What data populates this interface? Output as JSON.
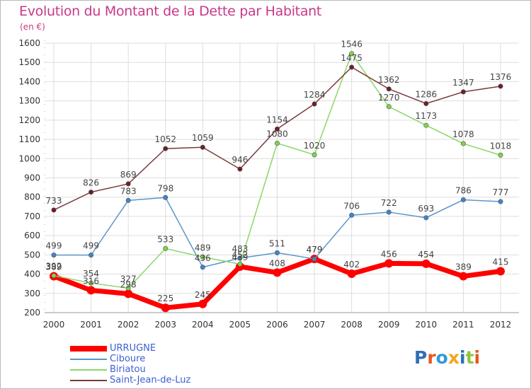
{
  "title": "Evolution du Montant de la Dette par Habitant",
  "unit_label": "(en €)",
  "logo_text": "Proxiti",
  "colors": {
    "title": "#c8388a",
    "axis_text": "#333333",
    "grid": "#dddddd",
    "legend_text": "#3c5fd6"
  },
  "chart_data": {
    "type": "line",
    "title": "Evolution du Montant de la Dette par Habitant",
    "xlabel": "",
    "ylabel": "(en €)",
    "ylim": [
      200,
      1600
    ],
    "yticks": [
      200,
      300,
      400,
      500,
      600,
      700,
      800,
      900,
      1000,
      1100,
      1200,
      1300,
      1400,
      1500,
      1600
    ],
    "categories": [
      "2000",
      "2001",
      "2002",
      "2003",
      "2004",
      "2005",
      "2006",
      "2007",
      "2008",
      "2009",
      "2010",
      "2011",
      "2012"
    ],
    "grid": true,
    "legend_position": "bottom-left",
    "series": [
      {
        "name": "URRUGNE",
        "color": "#ff0000",
        "marker": "#ff0000",
        "emphasis": true,
        "values": [
          389,
          316,
          298,
          225,
          245,
          439,
          408,
          479,
          402,
          456,
          454,
          389,
          415
        ]
      },
      {
        "name": "Ciboure",
        "color": "#5b96c8",
        "marker": "#3d86cc",
        "emphasis": false,
        "values": [
          499,
          499,
          783,
          798,
          436,
          483,
          511,
          479,
          706,
          722,
          693,
          786,
          777
        ]
      },
      {
        "name": "Biriatou",
        "color": "#8ed56a",
        "marker": "#7fd44b",
        "emphasis": false,
        "values": [
          392,
          354,
          327,
          533,
          489,
          452,
          1080,
          1020,
          1546,
          1270,
          1173,
          1078,
          1018
        ]
      },
      {
        "name": "Saint-Jean-de-Luz",
        "color": "#7a3a3a",
        "marker": "#6b1f28",
        "emphasis": false,
        "values": [
          733,
          826,
          869,
          1052,
          1059,
          946,
          1154,
          1284,
          1475,
          1362,
          1286,
          1347,
          1376
        ]
      }
    ]
  }
}
